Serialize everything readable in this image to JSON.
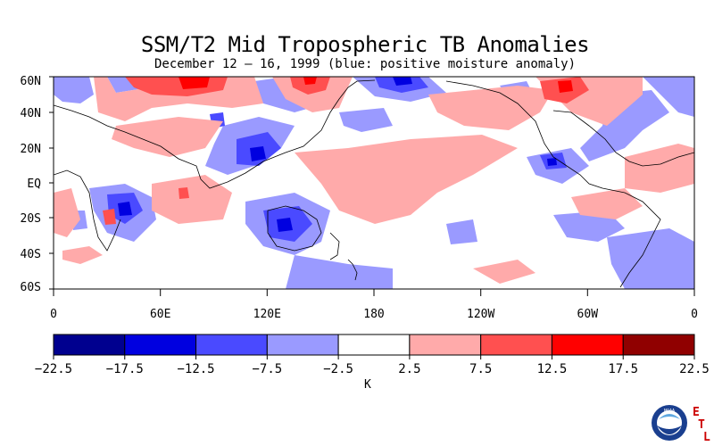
{
  "title": "SSM/T2 Mid Tropospheric TB Anomalies",
  "subtitle": "December 12 – 16, 1999 (blue: positive moisture anomaly)",
  "map": {
    "lat_labels": [
      "60N",
      "40N",
      "20N",
      "EQ",
      "20S",
      "40S",
      "60S"
    ],
    "lon_labels": [
      "0",
      "60E",
      "120E",
      "180",
      "120W",
      "60W",
      "0"
    ],
    "projection": "cylindrical equidistant, 0 to 360 longitude, 60S to 60N"
  },
  "colorbar": {
    "colors": [
      "#00008f",
      "#0000e0",
      "#4a4aff",
      "#9a9aff",
      "#ffffff",
      "#ffaaaa",
      "#ff5050",
      "#ff0000",
      "#900000"
    ],
    "tick_labels": [
      "−22.5",
      "−17.5",
      "−12.5",
      "−7.5",
      "−2.5",
      "2.5",
      "7.5",
      "12.5",
      "17.5",
      "22.5"
    ],
    "units": "K"
  },
  "logo": {
    "seal_text": "NOAA",
    "letters": [
      "E",
      "T",
      "L"
    ],
    "letter_color": "#cc0000"
  }
}
